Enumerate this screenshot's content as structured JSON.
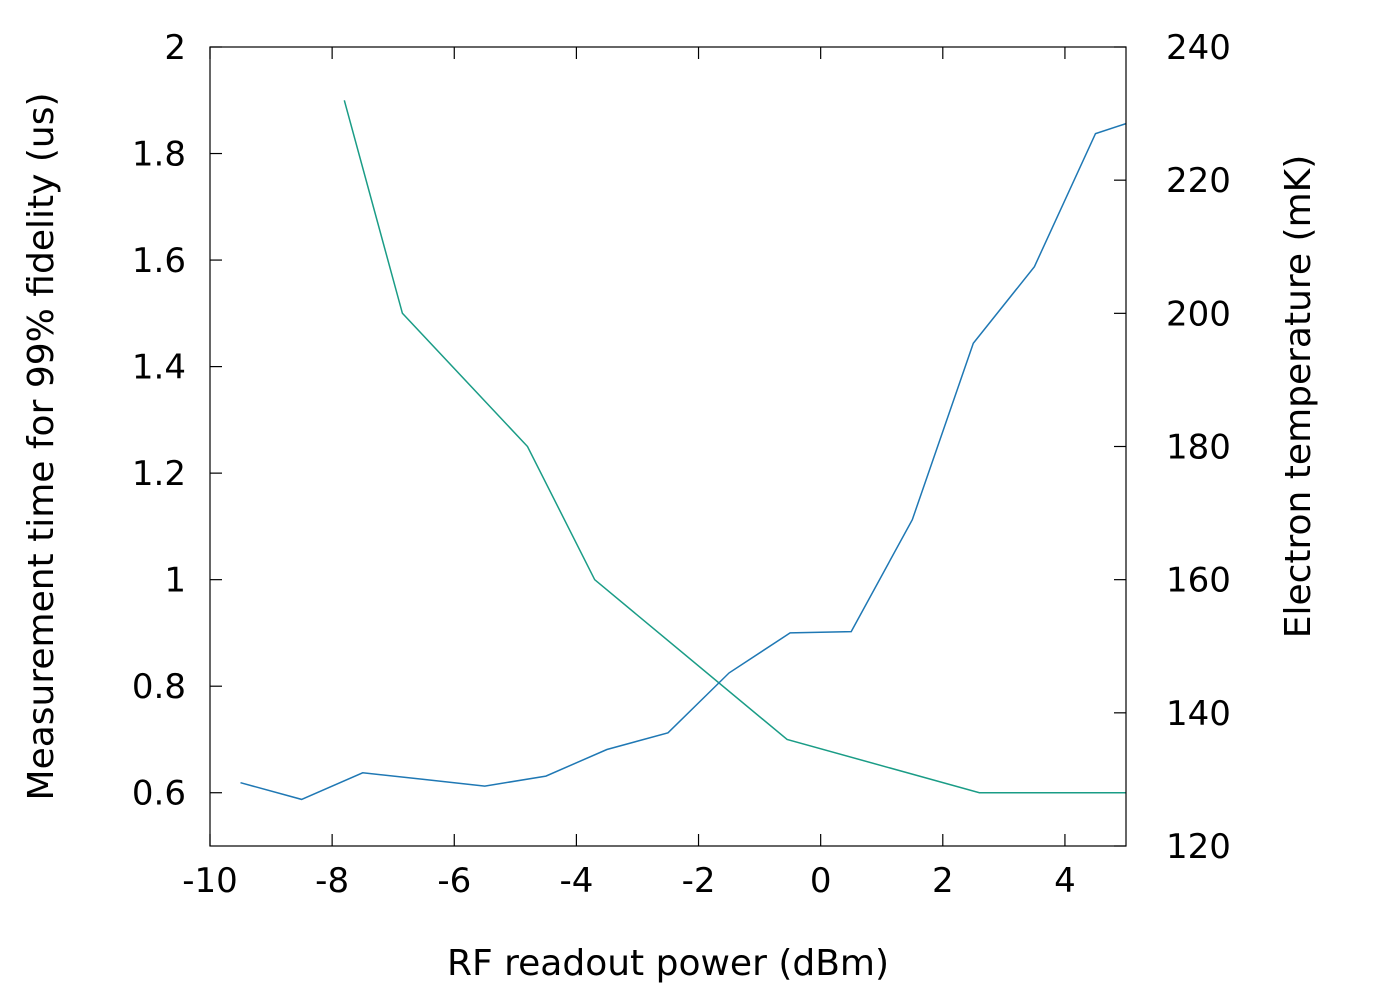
{
  "chart_data": {
    "type": "line",
    "title": "",
    "xlabel": "RF readout power (dBm)",
    "ylabel": "Measurement time for 99% fidelity (us)",
    "y2label": "Electron temperature (mK)",
    "xlim": [
      -10,
      5
    ],
    "ylim": [
      0.5,
      2
    ],
    "y2lim": [
      120,
      240
    ],
    "grid": false,
    "legend": "none",
    "xticks": [
      "-10",
      "-8",
      "-6",
      "-4",
      "-2",
      "0",
      "2",
      "4"
    ],
    "yticks": [
      "0.6",
      "0.8",
      "1",
      "1.2",
      "1.4",
      "1.6",
      "1.8",
      "2"
    ],
    "y2ticks": [
      "120",
      "140",
      "160",
      "180",
      "200",
      "220",
      "240"
    ],
    "series": [
      {
        "axis": "left",
        "color": "#1a9c86",
        "x": [
          -7.8,
          -6.85,
          -4.8,
          -3.7,
          -0.55,
          2.6,
          5.0
        ],
        "y": [
          1.9,
          1.5,
          1.25,
          1.0,
          0.7,
          0.6,
          0.6
        ]
      },
      {
        "axis": "right",
        "color": "#1f78b4",
        "x": [
          -9.5,
          -8.5,
          -7.5,
          -6.5,
          -5.5,
          -4.5,
          -3.5,
          -2.5,
          -1.5,
          -0.5,
          0.5,
          1.5,
          2.5,
          3.5,
          4.5,
          5.0
        ],
        "y": [
          129.5,
          127.0,
          131.0,
          130.0,
          129.0,
          130.5,
          134.5,
          137.0,
          146.0,
          152.0,
          152.2,
          169.0,
          195.5,
          207.0,
          227.0,
          228.5
        ]
      }
    ]
  }
}
